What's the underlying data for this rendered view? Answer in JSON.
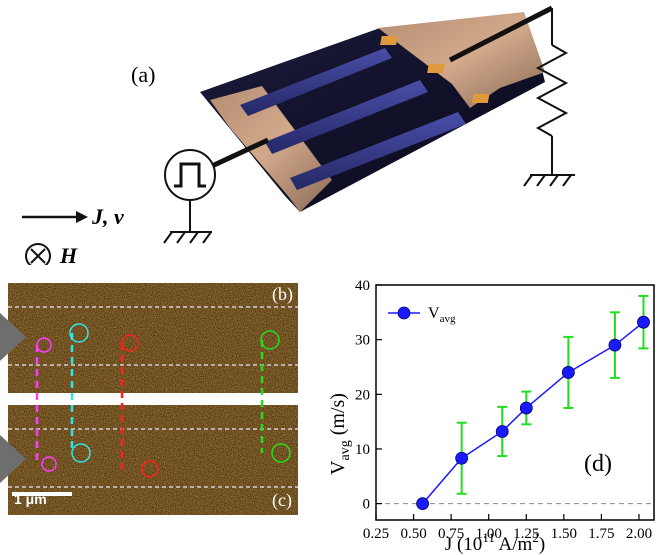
{
  "figure": {
    "panel_a_label": "(a)",
    "panel_b_label": "(b)",
    "panel_c_label": "(c)",
    "panel_d_label": "(d)",
    "legend_current_velocity": "J, v",
    "legend_field_symbol": "⊗",
    "legend_field": "H",
    "scale_bar_label": "1 μm"
  },
  "chart_data": {
    "type": "scatter",
    "x_label_main": "J (10",
    "x_label_sup": "11",
    "x_label_unit": " A/m",
    "x_label_sup2": "2",
    "x_label_close": ")",
    "y_label_main": "V",
    "y_label_sub": "avg",
    "y_label_unit": " (m/s)",
    "legend_main": "V",
    "legend_sub": "avg",
    "xlim": [
      0.25,
      2.1
    ],
    "ylim": [
      -3,
      40
    ],
    "xticks": [
      0.25,
      0.5,
      0.75,
      1.0,
      1.25,
      1.5,
      1.75,
      2.0
    ],
    "xtick_labels": [
      "0.25",
      "0.50",
      "0.75",
      "1.00",
      "1.25",
      "1.50",
      "1.75",
      "2.00"
    ],
    "yticks": [
      0,
      10,
      20,
      30,
      40
    ],
    "ytick_labels": [
      "0",
      "10",
      "20",
      "30",
      "40"
    ],
    "series": [
      {
        "x": [
          0.56,
          0.82,
          1.09,
          1.25,
          1.53,
          1.84,
          2.03
        ],
        "y": [
          0.0,
          8.3,
          13.2,
          17.5,
          24.0,
          29.0,
          33.2
        ],
        "err": [
          0.0,
          6.5,
          4.5,
          3.0,
          6.5,
          6.0,
          4.8
        ],
        "color": "#1a1aff",
        "error_color": "#22dd22"
      }
    ],
    "zero_line": true
  }
}
